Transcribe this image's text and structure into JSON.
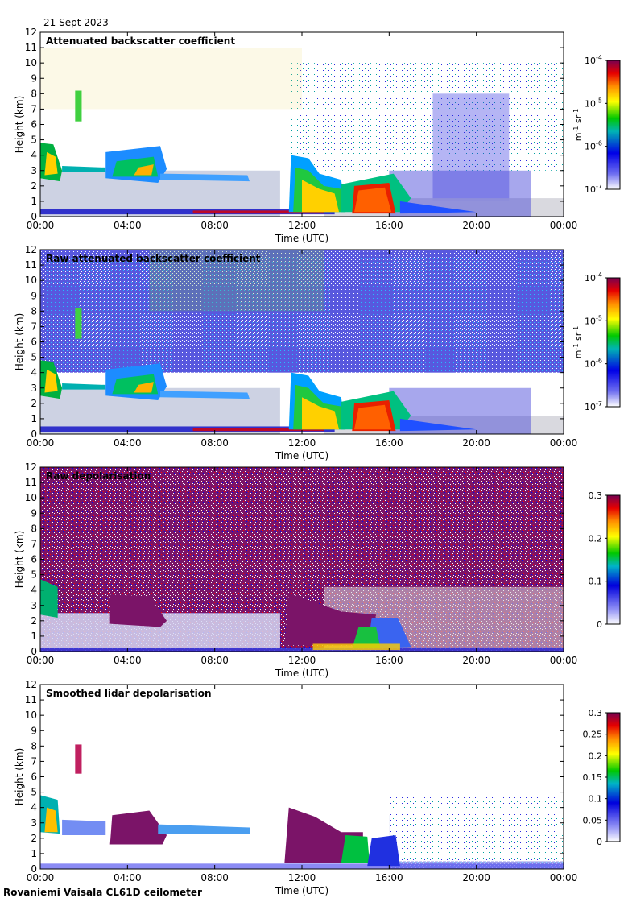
{
  "date": "21 Sept 2023",
  "footer": "Rovaniemi Vaisala CL61D ceilometer",
  "chart_data": [
    {
      "type": "heatmap",
      "title": "Attenuated backscatter coefficient",
      "xlabel": "Time (UTC)",
      "ylabel": "Height (km)",
      "x_ticks": [
        "00:00",
        "04:00",
        "08:00",
        "12:00",
        "16:00",
        "20:00",
        "00:00"
      ],
      "y_ticks": [
        0,
        1,
        2,
        3,
        4,
        5,
        6,
        7,
        8,
        9,
        10,
        11,
        12
      ],
      "ylim": [
        0,
        12
      ],
      "colorbar": {
        "scale": "log",
        "range": [
          1e-07,
          0.0001
        ],
        "tick_labels": [
          {
            "base": "10",
            "exp": "-4"
          },
          {
            "base": "10",
            "exp": "-5"
          },
          {
            "base": "10",
            "exp": "-6"
          },
          {
            "base": "10",
            "exp": "-7"
          }
        ],
        "label": {
          "unit1": "m",
          "exp1": "-1",
          "unit2": "sr",
          "exp2": "-1"
        }
      }
    },
    {
      "type": "heatmap",
      "title": "Raw attenuated backscatter coefficient",
      "xlabel": "Time (UTC)",
      "ylabel": "Height (km)",
      "x_ticks": [
        "00:00",
        "04:00",
        "08:00",
        "12:00",
        "16:00",
        "20:00",
        "00:00"
      ],
      "y_ticks": [
        0,
        1,
        2,
        3,
        4,
        5,
        6,
        7,
        8,
        9,
        10,
        11,
        12
      ],
      "ylim": [
        0,
        12
      ],
      "colorbar": {
        "scale": "log",
        "range": [
          1e-07,
          0.0001
        ],
        "tick_labels": [
          {
            "base": "10",
            "exp": "-4"
          },
          {
            "base": "10",
            "exp": "-5"
          },
          {
            "base": "10",
            "exp": "-6"
          },
          {
            "base": "10",
            "exp": "-7"
          }
        ],
        "label": {
          "unit1": "m",
          "exp1": "-1",
          "unit2": "sr",
          "exp2": "-1"
        }
      }
    },
    {
      "type": "heatmap",
      "title": "Raw depolarisation",
      "xlabel": "Time (UTC)",
      "ylabel": "Height (km)",
      "x_ticks": [
        "00:00",
        "04:00",
        "08:00",
        "12:00",
        "16:00",
        "20:00",
        "00:00"
      ],
      "y_ticks": [
        0,
        1,
        2,
        3,
        4,
        5,
        6,
        7,
        8,
        9,
        10,
        11,
        12
      ],
      "ylim": [
        0,
        12
      ],
      "colorbar": {
        "scale": "linear",
        "range": [
          0,
          0.3
        ],
        "tick_labels": [
          "0.3",
          "0.2",
          "0.1",
          "0"
        ]
      }
    },
    {
      "type": "heatmap",
      "title": "Smoothed lidar depolarisation",
      "xlabel": "Time (UTC)",
      "ylabel": "Height (km)",
      "x_ticks": [
        "00:00",
        "04:00",
        "08:00",
        "12:00",
        "16:00",
        "20:00",
        "00:00"
      ],
      "y_ticks": [
        0,
        1,
        2,
        3,
        4,
        5,
        6,
        7,
        8,
        9,
        10,
        11,
        12
      ],
      "ylim": [
        0,
        12
      ],
      "colorbar": {
        "scale": "linear",
        "range": [
          0,
          0.3
        ],
        "tick_labels": [
          "0.3",
          "0.25",
          "0.2",
          "0.15",
          "0.1",
          "0.05",
          "0"
        ]
      }
    }
  ]
}
